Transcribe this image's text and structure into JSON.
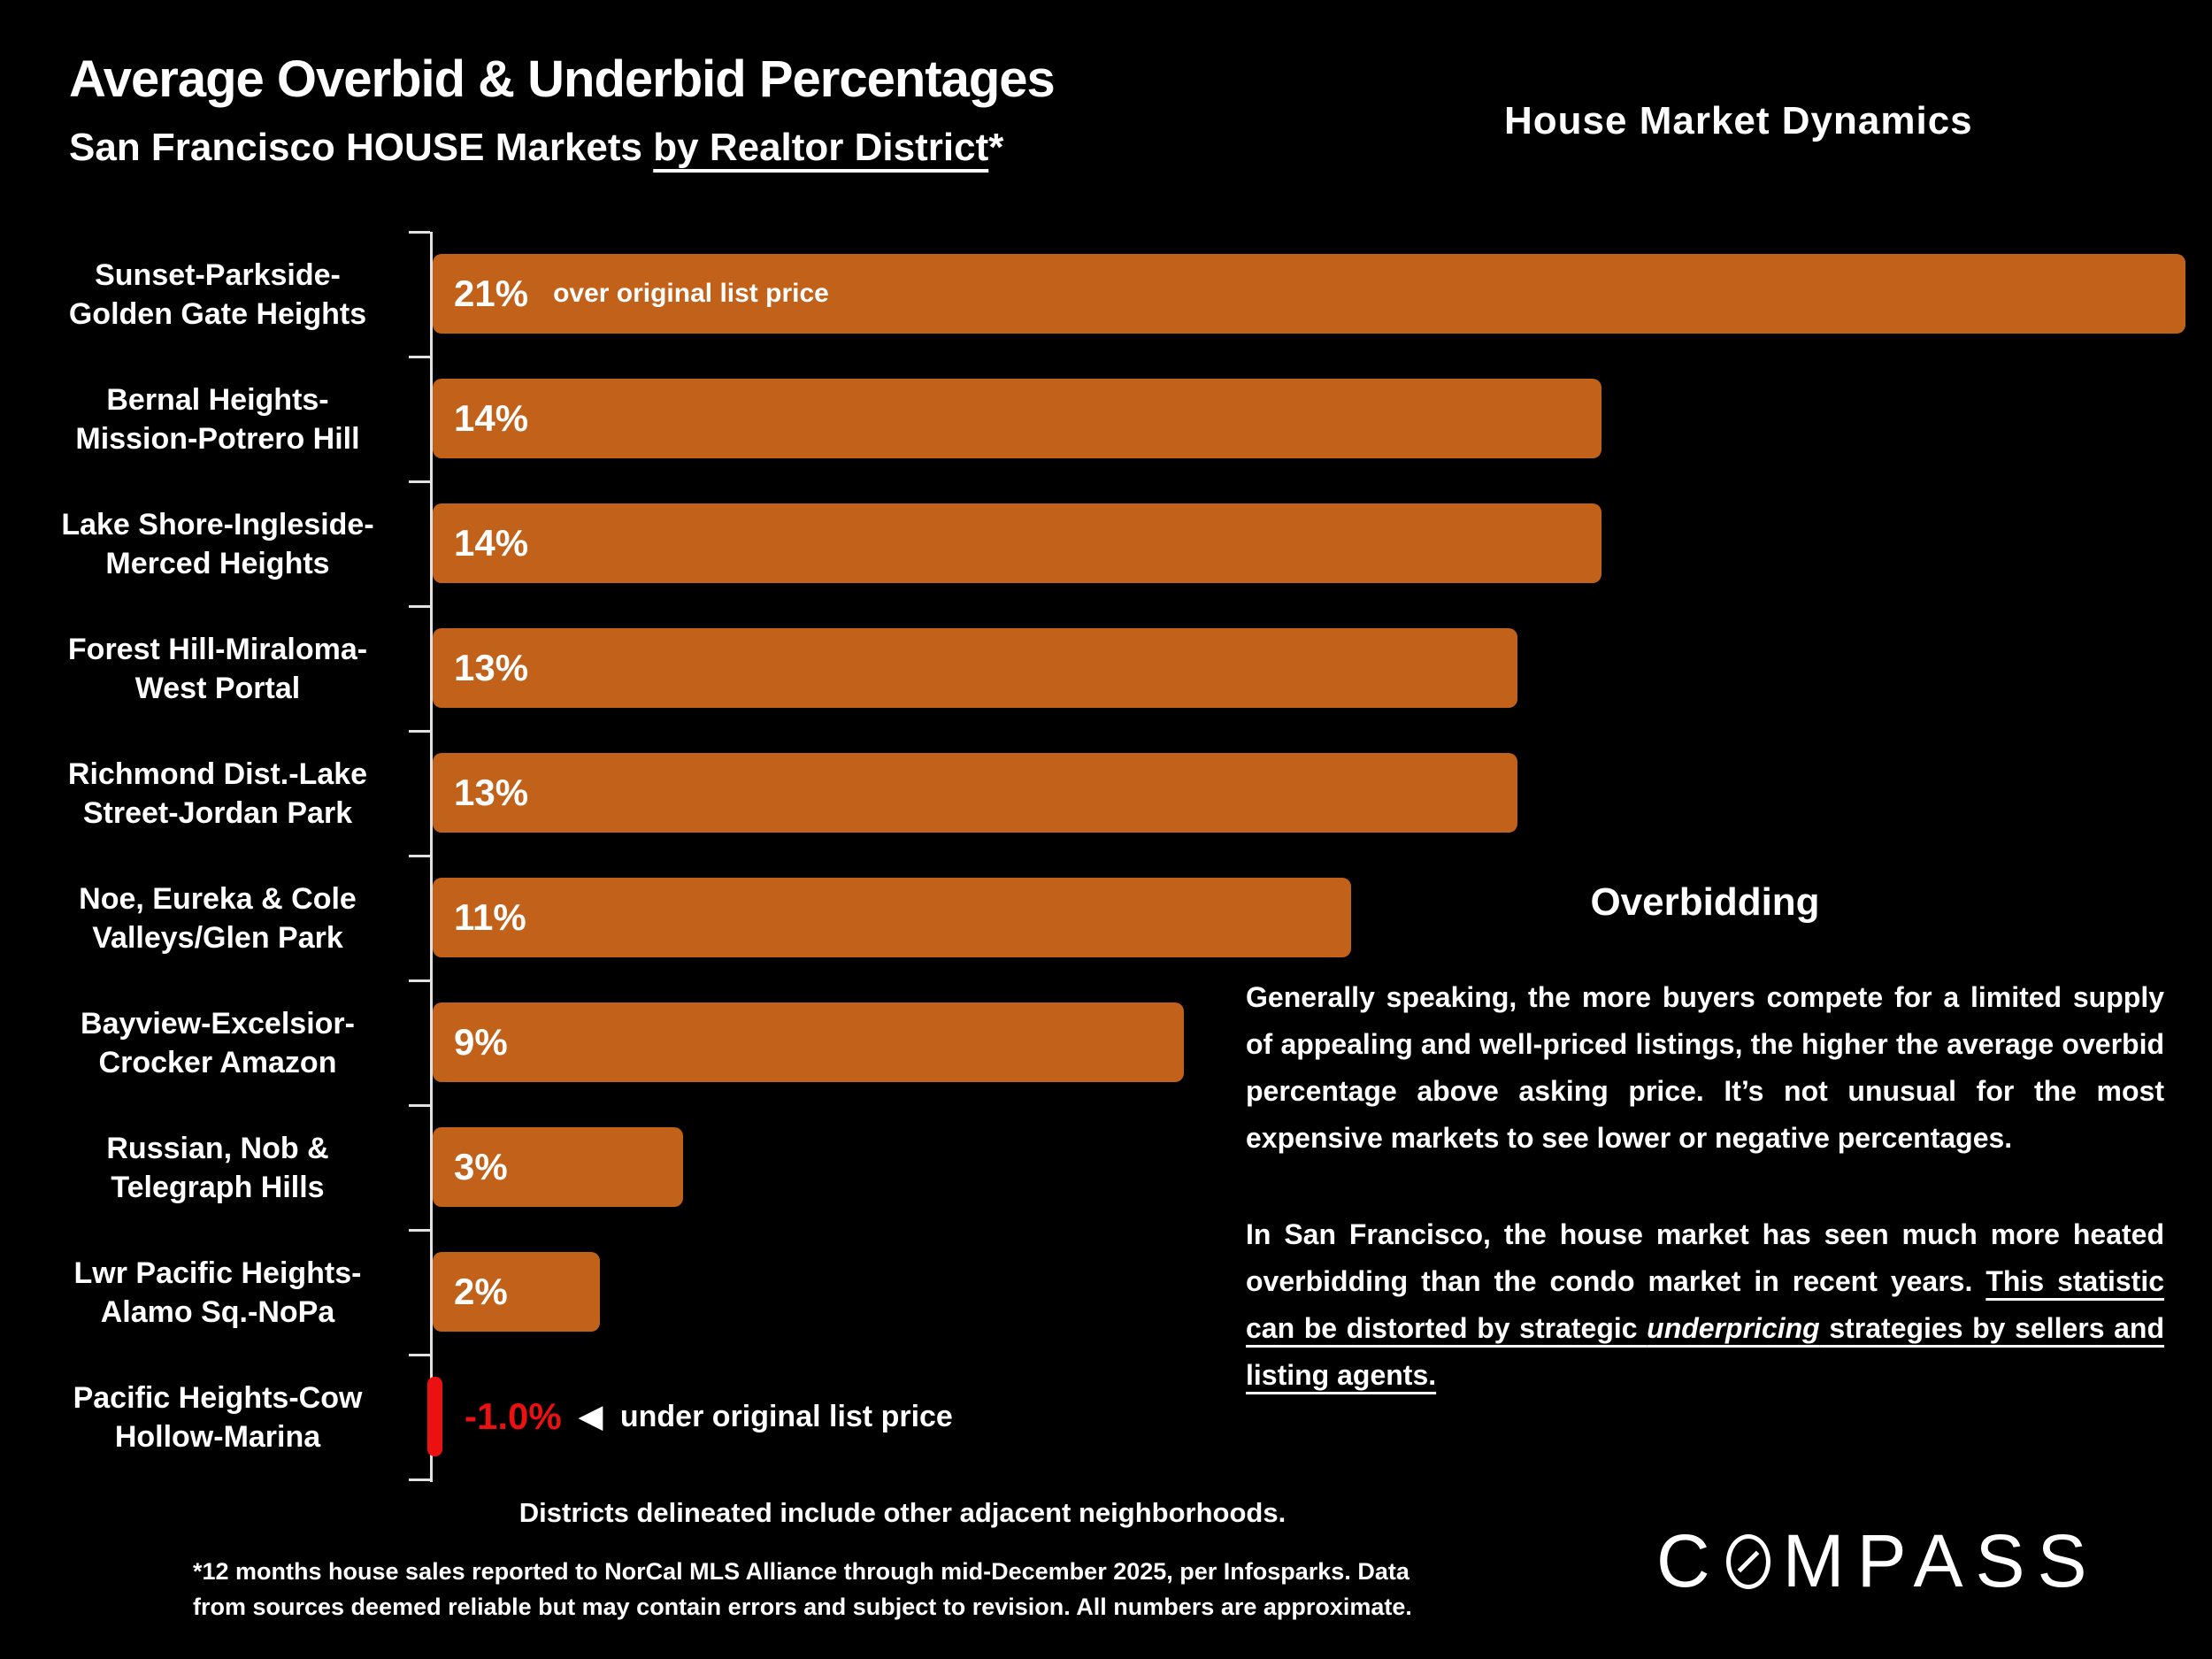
{
  "header": {
    "title": "Average Overbid & Underbid Percentages",
    "subtitle_prefix": "San Francisco HOUSE Markets ",
    "subtitle_underlined": "by Realtor District",
    "subtitle_asterisk": "*",
    "right_title": "House Market Dynamics"
  },
  "chart_data": {
    "type": "bar",
    "orientation": "horizontal",
    "title": "Average Overbid & Underbid Percentages, San Francisco HOUSE Markets by Realtor District",
    "xmax": 21,
    "unit": "%",
    "bar_color": "#C2611A",
    "negative_bar_color": "#EC1111",
    "axis_color": "#E2E2E2",
    "positive_note": "over original list price",
    "negative_note": "under original list price",
    "negative_arrow": "◀",
    "categories": [
      "Sunset-Parkside-Golden Gate Heights",
      "Bernal Heights-Mission-Potrero Hill",
      "Lake Shore-Ingleside-Merced Heights",
      "Forest Hill-Miraloma-West Portal",
      "Richmond Dist.-Lake Street-Jordan Park",
      "Noe, Eureka & Cole Valleys/Glen Park",
      "Bayview-Excelsior-Crocker Amazon",
      "Russian, Nob & Telegraph Hills",
      "Lwr Pacific Heights-Alamo Sq.-NoPa",
      "Pacific Heights-Cow Hollow-Marina"
    ],
    "rows": [
      {
        "label1": "Sunset-Parkside-",
        "label2": "Golden Gate Heights",
        "value": 21,
        "display": "21%"
      },
      {
        "label1": "Bernal Heights-",
        "label2": "Mission-Potrero Hill",
        "value": 14,
        "display": "14%"
      },
      {
        "label1": "Lake Shore-Ingleside-",
        "label2": "Merced Heights",
        "value": 14,
        "display": "14%"
      },
      {
        "label1": "Forest Hill-Miraloma-",
        "label2": "West Portal",
        "value": 13,
        "display": "13%"
      },
      {
        "label1": "Richmond Dist.-Lake",
        "label2": "Street-Jordan Park",
        "value": 13,
        "display": "13%"
      },
      {
        "label1": "Noe, Eureka & Cole",
        "label2": "Valleys/Glen Park",
        "value": 11,
        "display": "11%"
      },
      {
        "label1": "Bayview-Excelsior-",
        "label2": "Crocker Amazon",
        "value": 9,
        "display": "9%"
      },
      {
        "label1": "Russian, Nob &",
        "label2": "Telegraph Hills",
        "value": 3,
        "display": "3%"
      },
      {
        "label1": "Lwr Pacific Heights-",
        "label2": "Alamo Sq.-NoPa",
        "value": 2,
        "display": "2%"
      },
      {
        "label1": "Pacific Heights-Cow",
        "label2": "Hollow-Marina",
        "value": -1.0,
        "display": "-1.0%"
      }
    ]
  },
  "right_panel": {
    "heading": "Overbidding",
    "para1": "Generally speaking, the more buyers compete for a limited supply of appealing and well-priced listings, the higher the average overbid percentage above asking price. It’s not unusual for the most expensive markets to see lower or negative percentages.",
    "para2_plain": "In San Francisco, the house market has seen much more heated overbidding than the condo market in recent years. ",
    "para2_u1": "This statistic can be distorted by strategic ",
    "para2_u_italic": "underpricing",
    "para2_u2": " strategies by sellers and listing agents."
  },
  "footer": {
    "districts_note": "Districts delineated include other adjacent neighborhoods.",
    "footnote_line1": "*12 months house sales reported to NorCal MLS Alliance through mid-December 2025, per Infosparks. Data",
    "footnote_line2": "from sources deemed reliable but may contain errors and subject to revision. All numbers are approximate.",
    "logo_c": "C",
    "logo_rest": "MPASS"
  }
}
